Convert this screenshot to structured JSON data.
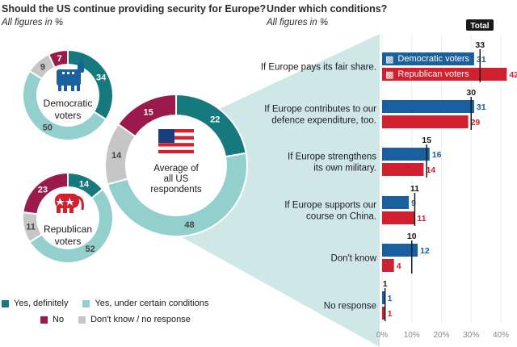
{
  "left": {
    "title": "Should the US continue providing security for Europe?",
    "subtitle": "All figures in %",
    "legend": [
      {
        "key": "yes_def",
        "label": "Yes, definitely"
      },
      {
        "key": "yes_cond",
        "label": "Yes, under certain conditions"
      },
      {
        "key": "no",
        "label": "No"
      },
      {
        "key": "dk",
        "label": "Don't know / no response"
      }
    ]
  },
  "right": {
    "title": "Under which conditions?",
    "subtitle": "All figures in %",
    "total_label": "Total",
    "legend_dem": "Democratic voters",
    "legend_rep": "Republican voters"
  },
  "colors": {
    "yes_def": "#16797d",
    "yes_cond": "#93cfcc",
    "no": "#9c1a4b",
    "dk": "#c6c6c6",
    "dem": "#1a5f9e",
    "rep": "#d1202f",
    "connector": "#cfe8e7"
  },
  "chart_data": [
    {
      "type": "pie",
      "title": "Democratic voters",
      "categories": [
        "Yes, definitely",
        "Yes, under certain conditions",
        "Don't know / no response",
        "No"
      ],
      "values": [
        34,
        50,
        9,
        7
      ]
    },
    {
      "type": "pie",
      "title": "Republican voters",
      "categories": [
        "Yes, definitely",
        "Yes, under certain conditions",
        "Don't know / no response",
        "No"
      ],
      "values": [
        14,
        52,
        11,
        23
      ]
    },
    {
      "type": "pie",
      "title": "Average of all US respondents",
      "categories": [
        "Yes, definitely",
        "Yes, under certain conditions",
        "Don't know / no response",
        "No"
      ],
      "values": [
        22,
        48,
        14,
        15
      ]
    },
    {
      "type": "bar",
      "title": "Under which conditions?",
      "categories": [
        "If Europe pays its fair share.",
        "If Europe contributes to our defence expenditure, too.",
        "If Europe strengthens its own military.",
        "If Europe supports our course on China.",
        "Don't know",
        "No response"
      ],
      "category_lines": [
        [
          "If Europe pays its fair share."
        ],
        [
          "If Europe contributes to our",
          "defence expenditure, too."
        ],
        [
          "If Europe strengthens",
          "its own military."
        ],
        [
          "If Europe supports our",
          "course on China."
        ],
        [
          "Don't know"
        ],
        [
          "No response"
        ]
      ],
      "series": [
        {
          "name": "Democratic voters",
          "values": [
            31,
            31,
            16,
            9,
            12,
            1
          ]
        },
        {
          "name": "Republican voters",
          "values": [
            42,
            29,
            14,
            11,
            4,
            1
          ]
        }
      ],
      "totals": {
        "name": "Total",
        "values": [
          33,
          30,
          15,
          11,
          10,
          1
        ]
      },
      "xlim": [
        0,
        40
      ],
      "xticks": [
        "0%",
        "10%",
        "20%",
        "30%",
        "40%"
      ]
    }
  ]
}
